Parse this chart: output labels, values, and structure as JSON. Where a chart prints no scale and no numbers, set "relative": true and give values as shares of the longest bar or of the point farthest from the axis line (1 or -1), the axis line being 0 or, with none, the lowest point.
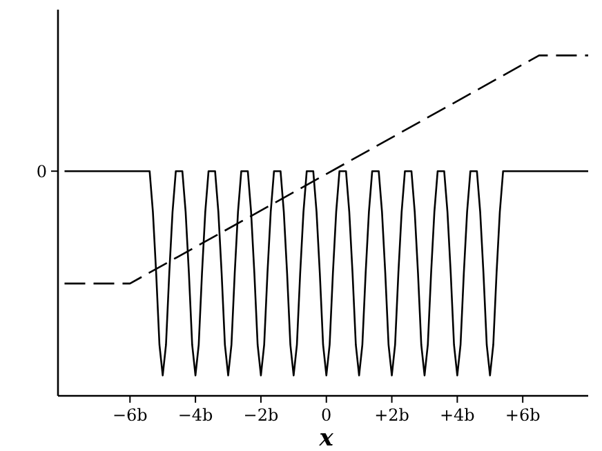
{
  "chart_data": {
    "type": "line",
    "relative": true,
    "xlabel": "x",
    "xlim": [
      -8.2,
      8.0
    ],
    "xticks": [
      {
        "value": -6,
        "label": "−6b"
      },
      {
        "value": -4,
        "label": "−4b"
      },
      {
        "value": -2,
        "label": "−2b"
      },
      {
        "value": 0,
        "label": "0"
      },
      {
        "value": 2,
        "label": "+2b"
      },
      {
        "value": 4,
        "label": "+4b"
      },
      {
        "value": 6,
        "label": "+6b"
      }
    ],
    "annotations": [
      "0"
    ],
    "grid": false,
    "series": [
      {
        "color": "#000000",
        "line_style": "solid",
        "x": [
          -8.0,
          -5.4,
          -5.3,
          -5.2,
          -5.1,
          -5,
          -4.9,
          -4.8,
          -4.7,
          -4.6,
          -4.4,
          -4.3,
          -4.2,
          -4.1,
          -4,
          -3.9,
          -3.8,
          -3.7,
          -3.6,
          -3.4,
          -3.3,
          -3.2,
          -3.1,
          -3,
          -2.9,
          -2.8,
          -2.7,
          -2.6,
          -2.4,
          -2.3,
          -2.2,
          -2.1,
          -2,
          -1.9,
          -1.8,
          -1.7,
          -1.6,
          -1.4,
          -1.3,
          -1.2,
          -1.1,
          -1,
          -0.9,
          -0.8,
          -0.7,
          -0.6,
          -0.4,
          -0.3,
          -0.2,
          -0.1,
          0,
          0.1,
          0.2,
          0.3,
          0.4,
          0.6,
          0.7,
          0.8,
          0.9,
          1,
          1.1,
          1.2,
          1.3,
          1.4,
          1.6,
          1.7,
          1.8,
          1.9,
          2,
          2.1,
          2.2,
          2.3,
          2.4,
          2.6,
          2.7,
          2.8,
          2.9,
          3,
          3.1,
          3.2,
          3.3,
          3.4,
          3.6,
          3.7,
          3.8,
          3.9,
          4,
          4.1,
          4.2,
          4.3,
          4.4,
          4.6,
          4.7,
          4.8,
          4.9,
          5,
          5.1,
          5.2,
          5.3,
          5.4,
          8.0
        ],
        "values": [
          0.66,
          0.66,
          0.54,
          0.36,
          0.15,
          0.06,
          0.15,
          0.36,
          0.54,
          0.66,
          0.66,
          0.54,
          0.36,
          0.15,
          0.06,
          0.15,
          0.36,
          0.54,
          0.66,
          0.66,
          0.54,
          0.36,
          0.15,
          0.06,
          0.15,
          0.36,
          0.54,
          0.66,
          0.66,
          0.54,
          0.36,
          0.15,
          0.06,
          0.15,
          0.36,
          0.54,
          0.66,
          0.66,
          0.54,
          0.36,
          0.15,
          0.06,
          0.15,
          0.36,
          0.54,
          0.66,
          0.66,
          0.54,
          0.36,
          0.15,
          0.06,
          0.15,
          0.36,
          0.54,
          0.66,
          0.66,
          0.54,
          0.36,
          0.15,
          0.06,
          0.15,
          0.36,
          0.54,
          0.66,
          0.66,
          0.54,
          0.36,
          0.15,
          0.06,
          0.15,
          0.36,
          0.54,
          0.66,
          0.66,
          0.54,
          0.36,
          0.15,
          0.06,
          0.15,
          0.36,
          0.54,
          0.66,
          0.66,
          0.54,
          0.36,
          0.15,
          0.06,
          0.15,
          0.36,
          0.54,
          0.66,
          0.66,
          0.54,
          0.36,
          0.15,
          0.06,
          0.15,
          0.36,
          0.54,
          0.66,
          0.66
        ]
      },
      {
        "color": "#000000",
        "line_style": "dashed",
        "x": [
          -8.0,
          -6,
          6.5,
          8.0
        ],
        "values": [
          0.33,
          0.33,
          1,
          1
        ]
      }
    ]
  }
}
